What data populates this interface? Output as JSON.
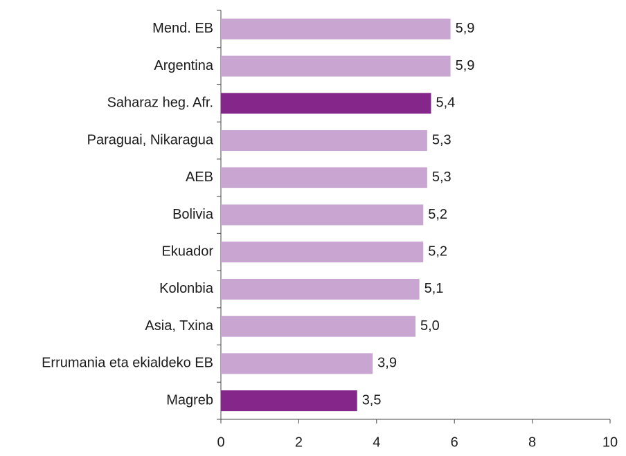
{
  "chart_data": {
    "type": "barh",
    "categories": [
      "Mend. EB",
      "Argentina",
      "Saharaz heg. Afr.",
      "Paraguai, Nikaragua",
      "AEB",
      "Bolivia",
      "Ekuador",
      "Kolonbia",
      "Asia, Txina",
      "Errumania eta ekialdeko EB",
      "Magreb"
    ],
    "values": [
      5.9,
      5.9,
      5.4,
      5.3,
      5.3,
      5.2,
      5.2,
      5.1,
      5.0,
      3.9,
      3.5
    ],
    "value_labels": [
      "5,9",
      "5,9",
      "5,4",
      "5,3",
      "5,3",
      "5,2",
      "5,2",
      "5,1",
      "5,0",
      "3,9",
      "3,5"
    ],
    "colors": [
      "#c9a6d1",
      "#c9a6d1",
      "#85268a",
      "#c9a6d1",
      "#c9a6d1",
      "#c9a6d1",
      "#c9a6d1",
      "#c9a6d1",
      "#c9a6d1",
      "#c9a6d1",
      "#85268a"
    ],
    "xlim": [
      0,
      10
    ],
    "xticks": [
      0,
      2,
      4,
      6,
      8,
      10
    ]
  }
}
